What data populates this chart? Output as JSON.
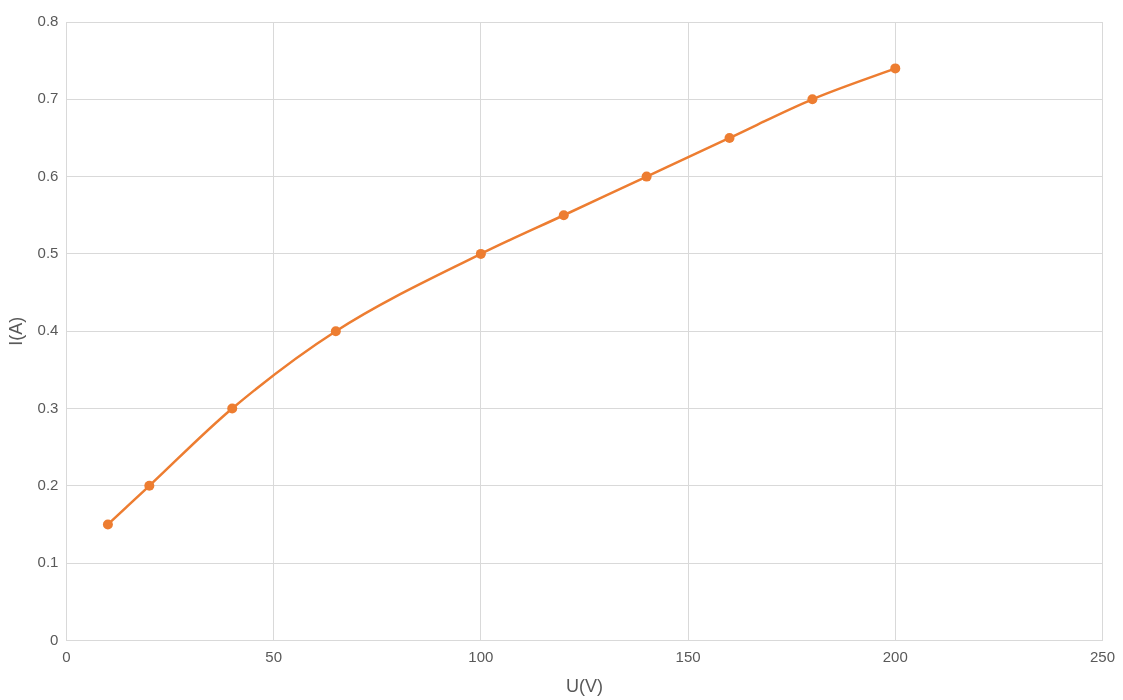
{
  "chart_data": {
    "type": "line",
    "xlabel": "U(V)",
    "ylabel": "I(A)",
    "x": [
      10,
      20,
      40,
      65,
      100,
      120,
      140,
      160,
      180,
      200
    ],
    "series": [
      {
        "color": "#ed7d31",
        "values": [
          0.15,
          0.2,
          0.3,
          0.4,
          0.5,
          0.55,
          0.6,
          0.65,
          0.7,
          0.74
        ]
      }
    ],
    "xlim": [
      0,
      250
    ],
    "xticks": [
      0,
      50,
      100,
      150,
      200,
      250
    ],
    "ylim": [
      0,
      0.8
    ],
    "yticks": [
      0,
      0.1,
      0.2,
      0.3,
      0.4,
      0.5,
      0.6,
      0.7,
      0.8
    ],
    "grid": true,
    "legend": false,
    "marker": "circle",
    "line_style": "solid"
  }
}
